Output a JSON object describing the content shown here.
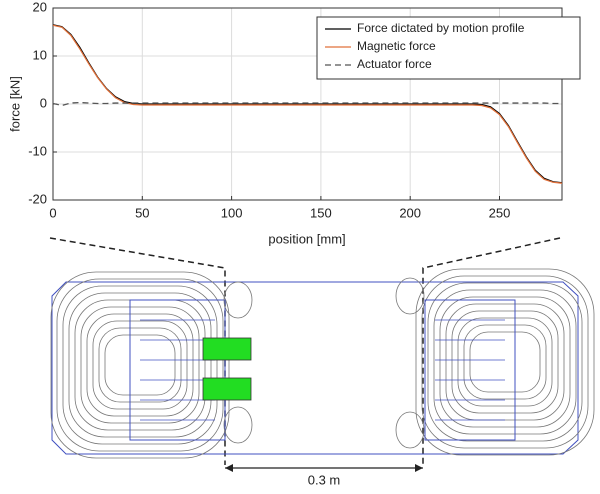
{
  "chart_data": {
    "type": "line",
    "xlabel": "position [mm]",
    "ylabel": "force [kN]",
    "x": [
      0,
      5,
      10,
      15,
      20,
      25,
      30,
      35,
      40,
      45,
      50,
      100,
      150,
      200,
      235,
      240,
      245,
      250,
      255,
      260,
      265,
      270,
      275,
      280,
      285
    ],
    "series": [
      {
        "name": "Force dictated by motion profile",
        "color": "#000000",
        "dash": false,
        "values": [
          16.5,
          16.1,
          14.5,
          11.8,
          8.6,
          5.6,
          3.2,
          1.5,
          0.5,
          0.1,
          0,
          0,
          0,
          0,
          0,
          -0.1,
          -0.6,
          -2,
          -4.5,
          -7.8,
          -11,
          -13.8,
          -15.5,
          -16.2,
          -16.4
        ]
      },
      {
        "name": "Magnetic force",
        "color": "#e0703a",
        "dash": false,
        "values": [
          16.4,
          16.0,
          14.3,
          11.5,
          8.4,
          5.5,
          3.1,
          1.3,
          0.3,
          -0.1,
          -0.2,
          -0.2,
          -0.2,
          -0.2,
          -0.2,
          -0.3,
          -0.8,
          -2.2,
          -4.7,
          -8,
          -11.2,
          -14,
          -15.7,
          -16.3,
          -16.5
        ]
      },
      {
        "name": "Actuator force",
        "color": "#555555",
        "dash": true,
        "values": [
          0.1,
          -0.3,
          0.2,
          0.3,
          0.2,
          0.1,
          0.1,
          0.2,
          0.2,
          0.2,
          0.2,
          0.2,
          0.2,
          0.2,
          0.2,
          0.2,
          0.2,
          0.2,
          0.2,
          0.2,
          0.2,
          0.2,
          0.2,
          0.1,
          0.1
        ]
      }
    ],
    "xlim": [
      0,
      285
    ],
    "xticks": [
      0,
      50,
      100,
      150,
      200,
      250
    ],
    "ylim": [
      -20,
      20
    ],
    "yticks": [
      -20,
      -10,
      0,
      10,
      20
    ],
    "grid": true,
    "legend": "top-right"
  },
  "diagram": {
    "dimension_label": "0.3 m"
  }
}
